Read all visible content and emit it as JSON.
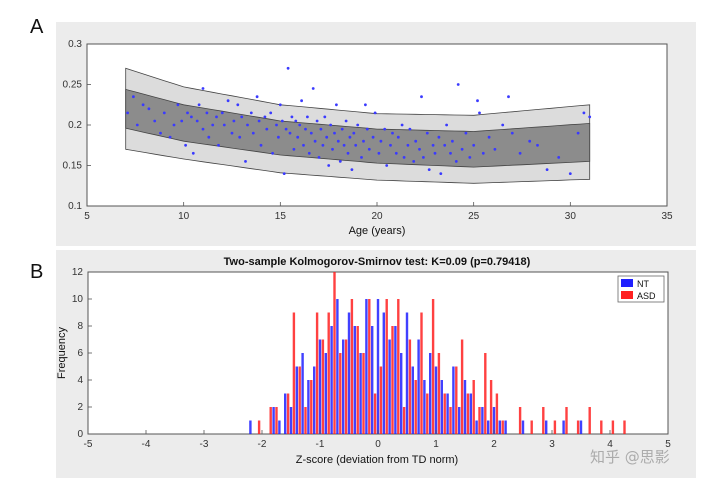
{
  "panels": {
    "a_letter": "A",
    "b_letter": "B"
  },
  "watermark": "知乎 @思影",
  "colors": {
    "nt": "#2020ff",
    "asd": "#ff2020",
    "band_outer": "#dcdcdc",
    "band_inner": "#8c8c8c",
    "point": "#3a3aff"
  },
  "chart_data": [
    {
      "type": "scatter",
      "title": "",
      "xlabel": "Age (years)",
      "ylabel": "",
      "xlim": [
        5,
        35
      ],
      "ylim": [
        0.1,
        0.3
      ],
      "xticks": [
        "5",
        "10",
        "15",
        "20",
        "25",
        "30",
        "35"
      ],
      "yticks": [
        "0.1",
        "0.15",
        "0.2",
        "0.25",
        "0.3"
      ],
      "normative_band": {
        "x": [
          7,
          10,
          15,
          20,
          25,
          31
        ],
        "outer_upper": [
          0.27,
          0.247,
          0.225,
          0.214,
          0.212,
          0.225
        ],
        "inner_upper": [
          0.244,
          0.225,
          0.205,
          0.195,
          0.192,
          0.202
        ],
        "inner_lower": [
          0.196,
          0.18,
          0.163,
          0.153,
          0.148,
          0.155
        ],
        "outer_lower": [
          0.17,
          0.158,
          0.141,
          0.132,
          0.128,
          0.133
        ]
      },
      "points": [
        [
          7.1,
          0.215
        ],
        [
          7.4,
          0.235
        ],
        [
          7.6,
          0.2
        ],
        [
          7.9,
          0.225
        ],
        [
          8.2,
          0.22
        ],
        [
          8.5,
          0.205
        ],
        [
          8.8,
          0.19
        ],
        [
          9.0,
          0.215
        ],
        [
          9.3,
          0.185
        ],
        [
          9.5,
          0.2
        ],
        [
          9.7,
          0.225
        ],
        [
          9.9,
          0.205
        ],
        [
          10.1,
          0.175
        ],
        [
          10.2,
          0.215
        ],
        [
          10.4,
          0.21
        ],
        [
          10.5,
          0.165
        ],
        [
          10.7,
          0.205
        ],
        [
          10.8,
          0.225
        ],
        [
          11.0,
          0.195
        ],
        [
          11.2,
          0.215
        ],
        [
          11.3,
          0.185
        ],
        [
          11.5,
          0.2
        ],
        [
          11.7,
          0.21
        ],
        [
          11.8,
          0.175
        ],
        [
          12.0,
          0.215
        ],
        [
          12.1,
          0.2
        ],
        [
          12.3,
          0.23
        ],
        [
          12.5,
          0.19
        ],
        [
          12.6,
          0.205
        ],
        [
          12.8,
          0.225
        ],
        [
          12.9,
          0.185
        ],
        [
          13.0,
          0.21
        ],
        [
          13.2,
          0.155
        ],
        [
          13.3,
          0.2
        ],
        [
          13.5,
          0.215
        ],
        [
          13.6,
          0.19
        ],
        [
          13.8,
          0.235
        ],
        [
          13.9,
          0.205
        ],
        [
          14.0,
          0.175
        ],
        [
          14.2,
          0.21
        ],
        [
          14.3,
          0.195
        ],
        [
          14.5,
          0.215
        ],
        [
          14.6,
          0.165
        ],
        [
          14.8,
          0.2
        ],
        [
          14.9,
          0.185
        ],
        [
          15.0,
          0.225
        ],
        [
          15.1,
          0.205
        ],
        [
          15.2,
          0.14
        ],
        [
          15.3,
          0.195
        ],
        [
          15.4,
          0.27
        ],
        [
          15.5,
          0.19
        ],
        [
          15.6,
          0.21
        ],
        [
          15.7,
          0.17
        ],
        [
          15.8,
          0.205
        ],
        [
          15.9,
          0.185
        ],
        [
          16.0,
          0.2
        ],
        [
          16.1,
          0.23
        ],
        [
          16.2,
          0.175
        ],
        [
          16.3,
          0.195
        ],
        [
          16.4,
          0.21
        ],
        [
          16.5,
          0.165
        ],
        [
          16.6,
          0.19
        ],
        [
          16.7,
          0.245
        ],
        [
          16.8,
          0.18
        ],
        [
          16.9,
          0.205
        ],
        [
          17.0,
          0.16
        ],
        [
          17.1,
          0.195
        ],
        [
          17.2,
          0.175
        ],
        [
          17.3,
          0.21
        ],
        [
          17.4,
          0.185
        ],
        [
          17.5,
          0.15
        ],
        [
          17.6,
          0.2
        ],
        [
          17.7,
          0.17
        ],
        [
          17.8,
          0.19
        ],
        [
          17.9,
          0.225
        ],
        [
          18.0,
          0.18
        ],
        [
          18.1,
          0.155
        ],
        [
          18.2,
          0.195
        ],
        [
          18.3,
          0.175
        ],
        [
          18.4,
          0.205
        ],
        [
          18.5,
          0.165
        ],
        [
          18.6,
          0.185
        ],
        [
          18.7,
          0.145
        ],
        [
          18.8,
          0.19
        ],
        [
          18.9,
          0.175
        ],
        [
          19.0,
          0.2
        ],
        [
          19.2,
          0.16
        ],
        [
          19.3,
          0.18
        ],
        [
          19.5,
          0.195
        ],
        [
          19.6,
          0.17
        ],
        [
          19.8,
          0.185
        ],
        [
          19.9,
          0.215
        ],
        [
          20.1,
          0.165
        ],
        [
          20.2,
          0.18
        ],
        [
          20.4,
          0.195
        ],
        [
          20.5,
          0.15
        ],
        [
          20.7,
          0.175
        ],
        [
          20.8,
          0.19
        ],
        [
          21.0,
          0.165
        ],
        [
          21.1,
          0.185
        ],
        [
          21.3,
          0.2
        ],
        [
          21.4,
          0.16
        ],
        [
          21.6,
          0.175
        ],
        [
          21.7,
          0.195
        ],
        [
          21.9,
          0.155
        ],
        [
          22.0,
          0.18
        ],
        [
          22.2,
          0.17
        ],
        [
          22.3,
          0.235
        ],
        [
          22.4,
          0.16
        ],
        [
          22.6,
          0.19
        ],
        [
          22.7,
          0.145
        ],
        [
          22.9,
          0.175
        ],
        [
          23.0,
          0.165
        ],
        [
          23.2,
          0.185
        ],
        [
          23.3,
          0.14
        ],
        [
          23.5,
          0.175
        ],
        [
          23.6,
          0.2
        ],
        [
          23.8,
          0.165
        ],
        [
          23.9,
          0.18
        ],
        [
          24.1,
          0.155
        ],
        [
          24.2,
          0.25
        ],
        [
          24.4,
          0.17
        ],
        [
          24.6,
          0.19
        ],
        [
          24.8,
          0.16
        ],
        [
          25.0,
          0.175
        ],
        [
          25.3,
          0.215
        ],
        [
          25.5,
          0.165
        ],
        [
          25.8,
          0.185
        ],
        [
          26.1,
          0.17
        ],
        [
          26.5,
          0.2
        ],
        [
          27.0,
          0.19
        ],
        [
          27.4,
          0.165
        ],
        [
          27.9,
          0.18
        ],
        [
          28.3,
          0.175
        ],
        [
          28.8,
          0.145
        ],
        [
          29.4,
          0.16
        ],
        [
          30.0,
          0.14
        ],
        [
          30.4,
          0.19
        ],
        [
          31.0,
          0.21
        ],
        [
          30.7,
          0.215
        ],
        [
          26.8,
          0.235
        ],
        [
          25.2,
          0.23
        ],
        [
          19.4,
          0.225
        ],
        [
          11.0,
          0.245
        ]
      ]
    },
    {
      "type": "bar",
      "title": "Two-sample Kolmogorov-Smirnov test: K=0.09 (p=0.79418)",
      "xlabel": "Z-score (deviation from TD norm)",
      "ylabel": "Frequency",
      "xlim": [
        -5,
        5
      ],
      "ylim": [
        0,
        12
      ],
      "xticks": [
        "-5",
        "-4",
        "-3",
        "-2",
        "-1",
        "0",
        "1",
        "2",
        "3",
        "4",
        "5"
      ],
      "yticks": [
        "0",
        "2",
        "4",
        "6",
        "8",
        "10",
        "12"
      ],
      "bin_width": 0.1,
      "series": [
        {
          "name": "NT",
          "x": [
            -2.2,
            -1.8,
            -1.7,
            -1.6,
            -1.5,
            -1.4,
            -1.3,
            -1.2,
            -1.1,
            -1.0,
            -0.9,
            -0.8,
            -0.7,
            -0.6,
            -0.5,
            -0.4,
            -0.3,
            -0.2,
            -0.1,
            0.0,
            0.1,
            0.2,
            0.3,
            0.4,
            0.5,
            0.6,
            0.7,
            0.8,
            0.9,
            1.0,
            1.1,
            1.2,
            1.3,
            1.4,
            1.5,
            1.6,
            1.7,
            1.8,
            1.9,
            2.0,
            2.1,
            2.2,
            2.5,
            2.9,
            3.2,
            3.5
          ],
          "values": [
            1,
            2,
            1,
            3,
            2,
            5,
            6,
            4,
            5,
            7,
            6,
            8,
            10,
            7,
            9,
            8,
            6,
            10,
            8,
            10,
            9,
            7,
            8,
            6,
            9,
            5,
            7,
            4,
            6,
            5,
            4,
            3,
            5,
            2,
            4,
            3,
            1,
            2,
            1,
            2,
            1,
            1,
            1,
            1,
            1,
            1
          ]
        },
        {
          "name": "ASD",
          "x": [
            -2.05,
            -1.85,
            -1.75,
            -1.55,
            -1.45,
            -1.35,
            -1.25,
            -1.15,
            -1.05,
            -0.95,
            -0.85,
            -0.75,
            -0.65,
            -0.55,
            -0.45,
            -0.35,
            -0.25,
            -0.15,
            -0.05,
            0.05,
            0.15,
            0.25,
            0.35,
            0.45,
            0.55,
            0.65,
            0.75,
            0.85,
            0.95,
            1.05,
            1.15,
            1.25,
            1.35,
            1.45,
            1.55,
            1.65,
            1.75,
            1.85,
            1.95,
            2.05,
            2.15,
            2.45,
            2.65,
            2.85,
            3.05,
            3.25,
            3.45,
            3.65,
            3.85,
            4.05,
            4.25
          ],
          "values": [
            1,
            2,
            2,
            3,
            9,
            5,
            2,
            4,
            9,
            7,
            9,
            12,
            6,
            7,
            10,
            8,
            6,
            10,
            3,
            5,
            10,
            8,
            10,
            2,
            7,
            4,
            9,
            3,
            10,
            6,
            3,
            2,
            5,
            7,
            3,
            4,
            2,
            6,
            4,
            3,
            1,
            2,
            1,
            2,
            1,
            2,
            1,
            2,
            1,
            1,
            1
          ]
        }
      ],
      "legend": [
        "NT",
        "ASD"
      ],
      "legend_position": "top-right"
    }
  ]
}
